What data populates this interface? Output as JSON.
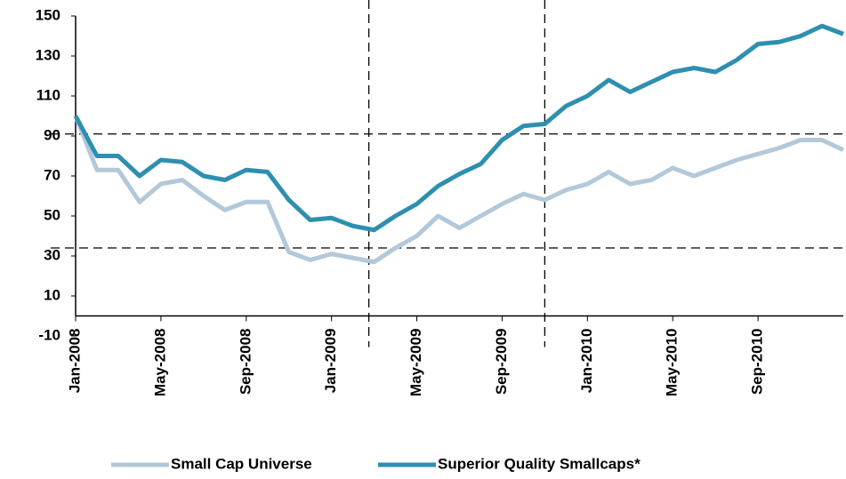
{
  "chart_data": {
    "type": "line",
    "categories": [
      "Jan-2008",
      null,
      null,
      null,
      "May-2008",
      null,
      null,
      null,
      "Sep-2008",
      null,
      null,
      null,
      "Jan-2009",
      null,
      null,
      null,
      "May-2009",
      null,
      null,
      null,
      "Sep-2009",
      null,
      null,
      null,
      "Jan-2010",
      null,
      null,
      null,
      "May-2010",
      null,
      null,
      null,
      "Sep-2010",
      null,
      null,
      null,
      null
    ],
    "series": [
      {
        "name": "Small Cap Universe",
        "color": "#b3c8d8",
        "values": [
          100,
          73,
          73,
          57,
          66,
          68,
          60,
          53,
          57,
          57,
          32,
          28,
          31,
          29,
          27,
          34,
          40,
          50,
          44,
          50,
          56,
          61,
          58,
          63,
          66,
          72,
          66,
          68,
          74,
          70,
          74,
          78,
          81,
          84,
          88,
          88,
          83
        ]
      },
      {
        "name": "Superior Quality Smallcaps*",
        "color": "#2e8fb0",
        "values": [
          100,
          80,
          80,
          70,
          78,
          77,
          70,
          68,
          73,
          72,
          58,
          48,
          49,
          45,
          43,
          50,
          56,
          65,
          71,
          76,
          88,
          95,
          96,
          105,
          110,
          118,
          112,
          117,
          122,
          124,
          122,
          128,
          136,
          137,
          140,
          145,
          141
        ]
      }
    ],
    "ylim": [
      -10,
      150
    ],
    "yticks": [
      -10,
      10,
      30,
      50,
      70,
      90,
      110,
      130,
      150
    ],
    "hlines": [
      91,
      34
    ],
    "vlines": [
      13.75,
      22
    ]
  }
}
